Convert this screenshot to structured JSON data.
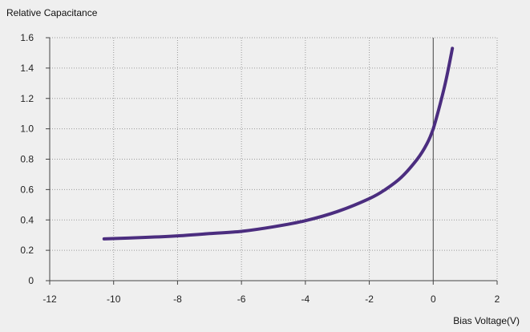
{
  "chart_data": {
    "type": "line",
    "title": "",
    "ylabel": "Relative Capacitance",
    "xlabel": "Bias Voltage(V)",
    "xlim": [
      -12,
      2
    ],
    "ylim": [
      0,
      1.6
    ],
    "x_ticks": [
      -12,
      -10,
      -8,
      -6,
      -4,
      -2,
      0,
      2
    ],
    "y_ticks": [
      0,
      0.2,
      0.4,
      0.6,
      0.8,
      1.0,
      1.2,
      1.4,
      1.6
    ],
    "x_tick_labels": [
      "-12",
      "-10",
      "-8",
      "-6",
      "-4",
      "-2",
      "0",
      "2"
    ],
    "y_tick_labels": [
      "0",
      "0.2",
      "0.4",
      "0.6",
      "0.8",
      "1.0",
      "1.2",
      "1.4",
      "1.6"
    ],
    "grid": true,
    "series": [
      {
        "color": "#4b2d7f",
        "x": [
          -10.3,
          -9,
          -8,
          -7,
          -6,
          -5,
          -4,
          -3,
          -2,
          -1.5,
          -1,
          -0.5,
          -0.2,
          0,
          0.2,
          0.4,
          0.6
        ],
        "y": [
          0.275,
          0.285,
          0.295,
          0.31,
          0.325,
          0.355,
          0.395,
          0.455,
          0.54,
          0.6,
          0.68,
          0.8,
          0.9,
          1.0,
          1.15,
          1.32,
          1.53
        ]
      }
    ]
  }
}
